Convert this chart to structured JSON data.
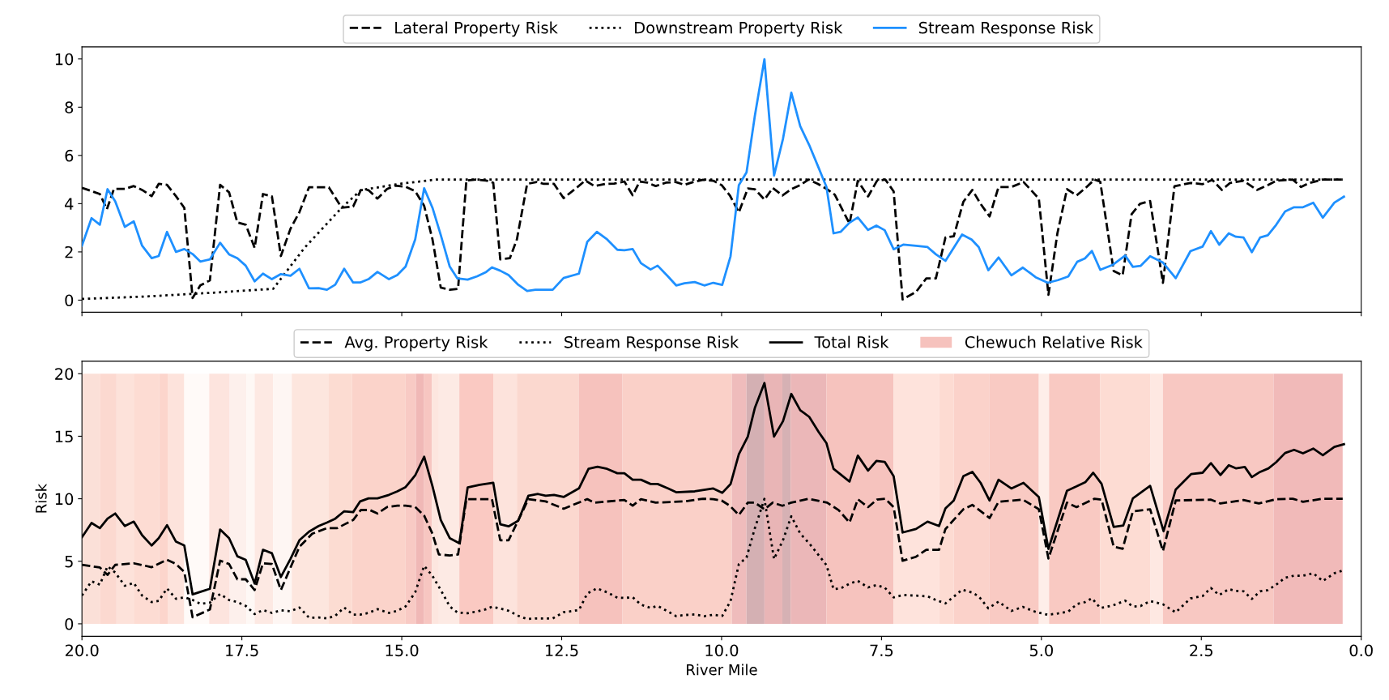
{
  "chart_data": [
    {
      "type": "line",
      "xlim": [
        20,
        0
      ],
      "ylim": [
        -0.5,
        10.5
      ],
      "yticks": [
        0,
        2,
        4,
        6,
        8,
        10
      ],
      "xticks": [
        {
          "value": 20,
          "label": null
        },
        {
          "value": 17.5,
          "label": null
        },
        {
          "value": 15,
          "label": null
        },
        {
          "value": 12.5,
          "label": null
        },
        {
          "value": 10,
          "label": null
        },
        {
          "value": 7.5,
          "label": null
        },
        {
          "value": 5,
          "label": null
        },
        {
          "value": 2.5,
          "label": null
        },
        {
          "value": 0,
          "label": null
        }
      ],
      "tick_labels": "y",
      "legend": "top",
      "series": [
        {
          "name": "Lateral Property Risk",
          "color": "#000000",
          "line_style": "dashed",
          "x": [
            20.0,
            19.72,
            19.61,
            19.5,
            19.33,
            19.19,
            19.06,
            18.91,
            18.8,
            18.67,
            18.53,
            18.4,
            18.27,
            18.15,
            18.0,
            17.84,
            17.7,
            17.57,
            17.44,
            17.3,
            17.17,
            17.03,
            16.89,
            16.74,
            16.6,
            16.45,
            16.3,
            16.14,
            15.94,
            15.76,
            15.64,
            15.52,
            15.38,
            15.23,
            15.1,
            14.94,
            14.79,
            14.65,
            14.52,
            14.39,
            14.25,
            14.12,
            13.99,
            13.84,
            13.68,
            13.57,
            13.46,
            13.31,
            13.2,
            13.04,
            12.89,
            12.78,
            12.62,
            12.47,
            12.29,
            12.13,
            11.99,
            11.81,
            11.68,
            11.52,
            11.39,
            11.28,
            11.16,
            11.03,
            10.87,
            10.72,
            10.58,
            10.44,
            10.29,
            10.13,
            10.0,
            9.87,
            9.73,
            9.59,
            9.48,
            9.33,
            9.2,
            9.05,
            8.91,
            8.77,
            8.64,
            8.5,
            8.35,
            8.23,
            8.14,
            8.0,
            7.87,
            7.71,
            7.57,
            7.44,
            7.31,
            7.17,
            6.96,
            6.8,
            6.65,
            6.5,
            6.37,
            6.22,
            6.08,
            5.95,
            5.81,
            5.67,
            5.47,
            5.28,
            5.04,
            4.89,
            4.75,
            4.6,
            4.45,
            4.31,
            4.17,
            4.08,
            3.87,
            3.73,
            3.59,
            3.46,
            3.3,
            3.1,
            2.92,
            2.67,
            2.48,
            2.33,
            2.18,
            2.05,
            1.84,
            1.63,
            1.46,
            1.33,
            1.07,
            0.94,
            0.81,
            0.6,
            0.29
          ],
          "values": [
            4.66,
            4.4,
            3.77,
            4.61,
            4.61,
            4.73,
            4.57,
            4.31,
            4.82,
            4.78,
            4.31,
            3.83,
            0.09,
            0.61,
            0.82,
            4.78,
            4.47,
            3.22,
            3.13,
            2.17,
            4.4,
            4.3,
            1.83,
            2.96,
            3.65,
            4.68,
            4.68,
            4.68,
            3.83,
            3.88,
            4.56,
            4.56,
            4.21,
            4.61,
            4.75,
            4.7,
            4.52,
            3.91,
            2.52,
            0.52,
            0.43,
            0.47,
            4.96,
            5.0,
            4.96,
            4.87,
            1.69,
            1.74,
            2.52,
            4.82,
            4.9,
            4.82,
            4.82,
            4.23,
            4.61,
            4.96,
            4.73,
            4.82,
            4.83,
            4.92,
            4.35,
            4.92,
            4.87,
            4.73,
            4.87,
            4.9,
            4.78,
            4.9,
            4.99,
            4.95,
            4.77,
            4.34,
            3.64,
            4.63,
            4.6,
            4.17,
            4.65,
            4.34,
            4.6,
            4.77,
            5.0,
            4.83,
            4.6,
            4.37,
            3.9,
            3.17,
            4.95,
            4.3,
            4.95,
            5.0,
            4.51,
            0.03,
            0.34,
            0.9,
            0.9,
            2.6,
            2.65,
            4.08,
            4.57,
            3.99,
            3.47,
            4.69,
            4.69,
            4.9,
            4.21,
            0.22,
            2.77,
            4.6,
            4.34,
            4.65,
            5.0,
            4.91,
            1.21,
            1.03,
            3.56,
            3.99,
            4.11,
            0.72,
            4.72,
            4.86,
            4.81,
            4.99,
            4.57,
            4.86,
            4.95,
            4.57,
            4.77,
            4.95,
            5.0,
            4.69,
            4.86,
            5.0,
            5.0
          ]
        },
        {
          "name": "Downstream Property Risk",
          "color": "#000000",
          "line_style": "dotted",
          "x": [
            20.0,
            19.0,
            18.0,
            17.01,
            16.52,
            15.94,
            15.64,
            15.04,
            14.46,
            0.29
          ],
          "values": [
            0.05,
            0.15,
            0.3,
            0.47,
            2.17,
            3.83,
            4.56,
            4.82,
            5.0,
            5.0
          ]
        },
        {
          "name": "Stream Response Risk",
          "color": "#1e90ff",
          "line_style": "solid",
          "x": [
            20.0,
            19.85,
            19.72,
            19.6,
            19.48,
            19.33,
            19.19,
            19.06,
            18.91,
            18.8,
            18.67,
            18.53,
            18.4,
            18.27,
            18.15,
            18.0,
            17.84,
            17.7,
            17.57,
            17.44,
            17.3,
            17.17,
            17.03,
            16.89,
            16.74,
            16.6,
            16.45,
            16.3,
            16.17,
            16.04,
            15.9,
            15.76,
            15.65,
            15.52,
            15.38,
            15.2,
            15.07,
            14.94,
            14.79,
            14.65,
            14.52,
            14.39,
            14.25,
            14.13,
            13.97,
            13.82,
            13.68,
            13.59,
            13.46,
            13.33,
            13.18,
            13.04,
            12.91,
            12.78,
            12.64,
            12.47,
            12.23,
            12.1,
            11.95,
            11.79,
            11.63,
            11.52,
            11.39,
            11.26,
            11.11,
            11.0,
            10.84,
            10.71,
            10.58,
            10.42,
            10.27,
            10.13,
            9.99,
            9.86,
            9.73,
            9.61,
            9.48,
            9.33,
            9.18,
            9.04,
            8.91,
            8.77,
            8.63,
            8.48,
            8.36,
            8.25,
            8.14,
            8.0,
            7.87,
            7.71,
            7.58,
            7.45,
            7.31,
            7.16,
            6.96,
            6.78,
            6.65,
            6.5,
            6.37,
            6.24,
            6.09,
            5.98,
            5.83,
            5.67,
            5.47,
            5.29,
            5.09,
            4.9,
            4.74,
            4.58,
            4.44,
            4.32,
            4.21,
            4.08,
            3.88,
            3.69,
            3.57,
            3.45,
            3.3,
            3.1,
            2.9,
            2.67,
            2.48,
            2.35,
            2.22,
            2.07,
            1.96,
            1.84,
            1.71,
            1.58,
            1.46,
            1.33,
            1.19,
            1.05,
            0.91,
            0.75,
            0.6,
            0.42,
            0.27
          ],
          "values": [
            2.26,
            3.4,
            3.13,
            4.6,
            4.1,
            3.04,
            3.27,
            2.26,
            1.74,
            1.83,
            2.83,
            2.0,
            2.12,
            1.91,
            1.6,
            1.69,
            2.38,
            1.9,
            1.74,
            1.43,
            0.78,
            1.1,
            0.87,
            1.08,
            1.01,
            1.3,
            0.49,
            0.5,
            0.43,
            0.64,
            1.3,
            0.73,
            0.73,
            0.87,
            1.17,
            0.87,
            1.04,
            1.39,
            2.52,
            4.64,
            3.83,
            2.7,
            1.39,
            0.9,
            0.85,
            0.99,
            1.17,
            1.36,
            1.22,
            1.04,
            0.64,
            0.38,
            0.43,
            0.43,
            0.43,
            0.92,
            1.1,
            2.42,
            2.83,
            2.52,
            2.09,
            2.07,
            2.12,
            1.53,
            1.27,
            1.43,
            0.99,
            0.61,
            0.7,
            0.75,
            0.61,
            0.72,
            0.63,
            1.82,
            4.77,
            5.3,
            7.64,
            9.99,
            5.17,
            6.69,
            8.6,
            7.21,
            6.43,
            5.47,
            4.69,
            2.77,
            2.83,
            3.21,
            3.43,
            2.91,
            3.09,
            2.9,
            2.11,
            2.3,
            2.25,
            2.2,
            1.9,
            1.63,
            2.17,
            2.72,
            2.51,
            2.2,
            1.24,
            1.77,
            1.03,
            1.35,
            0.95,
            0.72,
            0.83,
            0.98,
            1.59,
            1.73,
            2.04,
            1.26,
            1.47,
            1.85,
            1.38,
            1.42,
            1.82,
            1.56,
            0.91,
            2.03,
            2.22,
            2.86,
            2.3,
            2.77,
            2.63,
            2.6,
            1.99,
            2.6,
            2.69,
            3.12,
            3.68,
            3.85,
            3.85,
            4.04,
            3.42,
            4.04,
            4.29
          ]
        }
      ]
    },
    {
      "type": "line",
      "xlim": [
        20,
        0
      ],
      "ylim": [
        -1,
        21
      ],
      "yticks": [
        0,
        5,
        10,
        15,
        20
      ],
      "xticks": [
        {
          "value": 20,
          "label": "20.0"
        },
        {
          "value": 17.5,
          "label": "17.5"
        },
        {
          "value": 15,
          "label": "15.0"
        },
        {
          "value": 12.5,
          "label": "12.5"
        },
        {
          "value": 10,
          "label": "10.0"
        },
        {
          "value": 7.5,
          "label": "7.5"
        },
        {
          "value": 5,
          "label": "5.0"
        },
        {
          "value": 2.5,
          "label": "2.5"
        },
        {
          "value": 0,
          "label": "0.0"
        }
      ],
      "xlabel": "River Mile",
      "ylabel": "Risk",
      "legend": "top",
      "series": [
        {
          "name": "Avg. Property Risk",
          "color": "#000000",
          "line_style": "dashed",
          "x": [
            20.0,
            19.72,
            19.6,
            19.48,
            19.19,
            18.91,
            18.67,
            18.53,
            18.4,
            18.27,
            18.0,
            17.84,
            17.7,
            17.57,
            17.44,
            17.3,
            17.17,
            17.03,
            16.89,
            16.6,
            16.4,
            16.17,
            16.01,
            15.88,
            15.76,
            15.64,
            15.5,
            15.38,
            15.23,
            15.07,
            14.94,
            14.79,
            14.65,
            14.52,
            14.42,
            14.25,
            14.12,
            13.99,
            13.59,
            13.46,
            13.33,
            13.02,
            12.75,
            12.47,
            12.1,
            11.99,
            11.52,
            11.39,
            11.26,
            11.03,
            10.58,
            10.29,
            10.13,
            10.0,
            9.87,
            9.73,
            9.59,
            9.48,
            9.33,
            9.2,
            9.05,
            8.91,
            8.64,
            8.35,
            8.17,
            8.0,
            7.87,
            7.71,
            7.57,
            7.44,
            7.31,
            7.17,
            6.96,
            6.8,
            6.6,
            6.5,
            6.22,
            6.08,
            5.81,
            5.67,
            5.29,
            5.04,
            4.89,
            4.6,
            4.45,
            4.17,
            4.06,
            3.87,
            3.73,
            3.57,
            3.3,
            3.1,
            2.9,
            2.35,
            2.2,
            1.84,
            1.6,
            1.33,
            1.07,
            0.91,
            0.6,
            0.29
          ],
          "values": [
            4.71,
            4.5,
            3.91,
            4.71,
            4.84,
            4.53,
            5.12,
            4.78,
            4.15,
            0.52,
            1.14,
            5.05,
            4.78,
            3.56,
            3.56,
            2.7,
            4.84,
            4.78,
            2.7,
            6.16,
            7.2,
            7.65,
            7.65,
            7.99,
            8.3,
            9.1,
            9.1,
            8.82,
            9.34,
            9.45,
            9.45,
            9.34,
            8.65,
            7.2,
            5.54,
            5.47,
            5.54,
            9.97,
            9.97,
            6.68,
            6.68,
            9.97,
            9.79,
            9.2,
            9.97,
            9.69,
            9.9,
            9.45,
            9.97,
            9.69,
            9.79,
            10.0,
            9.97,
            9.86,
            9.44,
            8.7,
            9.69,
            9.69,
            9.16,
            9.69,
            9.44,
            9.69,
            10.0,
            9.69,
            9.09,
            8.1,
            9.96,
            9.33,
            9.93,
            10.0,
            9.33,
            5.04,
            5.36,
            5.92,
            5.92,
            7.58,
            9.16,
            9.51,
            8.46,
            9.76,
            9.93,
            9.16,
            5.22,
            9.69,
            9.33,
            10.0,
            9.93,
            6.17,
            6.0,
            8.99,
            9.16,
            5.82,
            9.86,
            9.93,
            9.62,
            9.9,
            9.62,
            9.96,
            10.0,
            9.76,
            10.0,
            10.0
          ]
        },
        {
          "name": "Stream Response Risk",
          "color": "#000000",
          "line_style": "dotted",
          "x": [
            20.0,
            19.85,
            19.72,
            19.6,
            19.48,
            19.33,
            19.19,
            19.06,
            18.91,
            18.8,
            18.67,
            18.53,
            18.4,
            18.27,
            18.15,
            18.0,
            17.84,
            17.7,
            17.57,
            17.44,
            17.3,
            17.17,
            17.03,
            16.89,
            16.74,
            16.6,
            16.45,
            16.3,
            16.17,
            16.04,
            15.9,
            15.76,
            15.65,
            15.52,
            15.38,
            15.2,
            15.07,
            14.94,
            14.79,
            14.65,
            14.52,
            14.39,
            14.25,
            14.13,
            13.97,
            13.82,
            13.68,
            13.59,
            13.46,
            13.33,
            13.18,
            13.04,
            12.91,
            12.78,
            12.64,
            12.47,
            12.23,
            12.1,
            11.95,
            11.79,
            11.63,
            11.52,
            11.39,
            11.26,
            11.11,
            11.0,
            10.84,
            10.71,
            10.58,
            10.42,
            10.27,
            10.13,
            9.99,
            9.86,
            9.73,
            9.61,
            9.48,
            9.33,
            9.18,
            9.04,
            8.91,
            8.77,
            8.63,
            8.48,
            8.36,
            8.25,
            8.14,
            8.0,
            7.87,
            7.71,
            7.58,
            7.45,
            7.31,
            7.16,
            6.96,
            6.78,
            6.65,
            6.5,
            6.37,
            6.24,
            6.09,
            5.98,
            5.83,
            5.67,
            5.47,
            5.29,
            5.09,
            4.9,
            4.74,
            4.58,
            4.44,
            4.32,
            4.21,
            4.08,
            3.88,
            3.69,
            3.57,
            3.45,
            3.3,
            3.1,
            2.9,
            2.67,
            2.48,
            2.35,
            2.22,
            2.07,
            1.96,
            1.84,
            1.71,
            1.58,
            1.46,
            1.33,
            1.19,
            1.05,
            0.91,
            0.75,
            0.6,
            0.42,
            0.27
          ],
          "values": [
            2.26,
            3.4,
            3.13,
            4.6,
            4.1,
            3.04,
            3.27,
            2.26,
            1.74,
            1.83,
            2.83,
            2.0,
            2.12,
            1.91,
            1.6,
            1.69,
            2.38,
            1.9,
            1.74,
            1.43,
            0.78,
            1.1,
            0.87,
            1.08,
            1.01,
            1.3,
            0.49,
            0.5,
            0.43,
            0.64,
            1.3,
            0.73,
            0.73,
            0.87,
            1.17,
            0.87,
            1.04,
            1.39,
            2.52,
            4.64,
            3.83,
            2.7,
            1.39,
            0.9,
            0.85,
            0.99,
            1.17,
            1.36,
            1.22,
            1.04,
            0.64,
            0.38,
            0.43,
            0.43,
            0.43,
            0.92,
            1.1,
            2.42,
            2.83,
            2.52,
            2.09,
            2.07,
            2.12,
            1.53,
            1.27,
            1.43,
            0.99,
            0.61,
            0.7,
            0.75,
            0.61,
            0.72,
            0.63,
            1.82,
            4.77,
            5.3,
            7.64,
            9.99,
            5.17,
            6.69,
            8.6,
            7.21,
            6.43,
            5.47,
            4.69,
            2.77,
            2.83,
            3.21,
            3.43,
            2.91,
            3.09,
            2.9,
            2.11,
            2.3,
            2.25,
            2.2,
            1.9,
            1.63,
            2.17,
            2.72,
            2.51,
            2.2,
            1.24,
            1.77,
            1.03,
            1.35,
            0.95,
            0.72,
            0.83,
            0.98,
            1.59,
            1.73,
            2.04,
            1.26,
            1.47,
            1.85,
            1.38,
            1.42,
            1.82,
            1.56,
            0.91,
            2.03,
            2.22,
            2.86,
            2.3,
            2.77,
            2.63,
            2.6,
            1.99,
            2.6,
            2.69,
            3.12,
            3.68,
            3.85,
            3.85,
            4.04,
            3.42,
            4.04,
            4.29
          ]
        },
        {
          "name": "Total Risk",
          "color": "#000000",
          "line_style": "solid",
          "x": [
            20.0,
            19.85,
            19.72,
            19.6,
            19.48,
            19.33,
            19.19,
            19.06,
            18.91,
            18.8,
            18.67,
            18.53,
            18.4,
            18.27,
            18.0,
            17.84,
            17.7,
            17.57,
            17.44,
            17.3,
            17.17,
            17.03,
            16.89,
            16.74,
            16.6,
            16.45,
            16.3,
            16.17,
            16.04,
            15.9,
            15.76,
            15.65,
            15.52,
            15.38,
            15.2,
            15.07,
            14.94,
            14.79,
            14.65,
            14.52,
            14.39,
            14.25,
            14.1,
            13.97,
            13.78,
            13.57,
            13.46,
            13.33,
            13.18,
            13.02,
            12.87,
            12.75,
            12.62,
            12.47,
            12.23,
            12.08,
            11.94,
            11.79,
            11.63,
            11.52,
            11.39,
            11.26,
            11.11,
            11.0,
            10.84,
            10.71,
            10.42,
            10.13,
            9.99,
            9.86,
            9.73,
            9.59,
            9.48,
            9.33,
            9.18,
            9.04,
            8.91,
            8.77,
            8.63,
            8.48,
            8.36,
            8.25,
            8.0,
            7.87,
            7.71,
            7.58,
            7.45,
            7.31,
            7.17,
            6.96,
            6.78,
            6.6,
            6.5,
            6.37,
            6.22,
            6.08,
            5.95,
            5.81,
            5.67,
            5.47,
            5.28,
            5.04,
            4.89,
            4.6,
            4.45,
            4.31,
            4.19,
            4.06,
            3.87,
            3.72,
            3.57,
            3.3,
            3.09,
            2.9,
            2.66,
            2.48,
            2.35,
            2.2,
            2.07,
            1.96,
            1.82,
            1.71,
            1.58,
            1.45,
            1.33,
            1.19,
            1.05,
            0.91,
            0.75,
            0.6,
            0.42,
            0.27
          ],
          "values": [
            6.92,
            8.06,
            7.65,
            8.41,
            8.82,
            7.82,
            8.17,
            7.09,
            6.26,
            6.85,
            7.89,
            6.57,
            6.26,
            2.35,
            2.8,
            7.54,
            6.85,
            5.4,
            5.12,
            3.22,
            5.92,
            5.64,
            3.74,
            5.19,
            6.68,
            7.37,
            7.82,
            8.1,
            8.41,
            9.0,
            8.93,
            9.79,
            10.03,
            10.03,
            10.31,
            10.59,
            10.93,
            11.87,
            13.36,
            11.0,
            8.3,
            6.85,
            6.44,
            10.9,
            11.11,
            11.28,
            7.96,
            7.79,
            8.24,
            10.24,
            10.38,
            10.24,
            10.31,
            10.14,
            10.83,
            12.39,
            12.56,
            12.39,
            12.04,
            12.04,
            11.52,
            11.52,
            11.18,
            11.18,
            10.83,
            10.52,
            10.59,
            10.82,
            10.47,
            11.17,
            13.56,
            14.97,
            17.26,
            19.26,
            14.97,
            16.2,
            18.38,
            17.08,
            16.55,
            15.32,
            14.44,
            12.4,
            11.38,
            13.45,
            12.25,
            13.02,
            12.95,
            11.8,
            7.3,
            7.58,
            8.17,
            7.82,
            9.23,
            9.86,
            11.8,
            12.15,
            11.27,
            9.86,
            11.52,
            10.82,
            11.27,
            10.14,
            5.99,
            10.64,
            10.99,
            11.34,
            12.08,
            11.2,
            7.75,
            7.86,
            10.03,
            11.03,
            7.4,
            10.74,
            11.97,
            12.08,
            12.85,
            11.9,
            12.68,
            12.43,
            12.54,
            11.73,
            12.15,
            12.43,
            12.92,
            13.66,
            13.91,
            13.63,
            14.01,
            13.48,
            14.15,
            14.36
          ]
        }
      ],
      "bands": [
        {
          "axis": "x",
          "from": 20.0,
          "to": 19.72,
          "color": "#fbe0d8"
        },
        {
          "axis": "x",
          "from": 19.72,
          "to": 19.46,
          "color": "#fcd9d0"
        },
        {
          "axis": "x",
          "from": 19.46,
          "to": 19.19,
          "color": "#fde2da"
        },
        {
          "axis": "x",
          "from": 19.19,
          "to": 18.79,
          "color": "#fddcd3"
        },
        {
          "axis": "x",
          "from": 18.79,
          "to": 18.66,
          "color": "#fcd5cc"
        },
        {
          "axis": "x",
          "from": 18.66,
          "to": 18.4,
          "color": "#fde3dc"
        },
        {
          "axis": "x",
          "from": 18.4,
          "to": 18.01,
          "color": "#fffaf8"
        },
        {
          "axis": "x",
          "from": 18.01,
          "to": 17.69,
          "color": "#fde4de"
        },
        {
          "axis": "x",
          "from": 17.69,
          "to": 17.43,
          "color": "#fdf0ec"
        },
        {
          "axis": "x",
          "from": 17.43,
          "to": 17.3,
          "color": "#fef8f5"
        },
        {
          "axis": "x",
          "from": 17.3,
          "to": 17.01,
          "color": "#fde9e3"
        },
        {
          "axis": "x",
          "from": 17.01,
          "to": 16.72,
          "color": "#fef6f3"
        },
        {
          "axis": "x",
          "from": 16.72,
          "to": 16.14,
          "color": "#fde6de"
        },
        {
          "axis": "x",
          "from": 16.14,
          "to": 15.78,
          "color": "#fcdcd2"
        },
        {
          "axis": "x",
          "from": 15.78,
          "to": 14.94,
          "color": "#fbd3ca"
        },
        {
          "axis": "x",
          "from": 14.94,
          "to": 14.78,
          "color": "#f8cac4"
        },
        {
          "axis": "x",
          "from": 14.78,
          "to": 14.65,
          "color": "#f0b8b6"
        },
        {
          "axis": "x",
          "from": 14.65,
          "to": 14.53,
          "color": "#f7c6c1"
        },
        {
          "axis": "x",
          "from": 14.53,
          "to": 14.42,
          "color": "#fde6df"
        },
        {
          "axis": "x",
          "from": 14.42,
          "to": 14.1,
          "color": "#fdeae4"
        },
        {
          "axis": "x",
          "from": 14.1,
          "to": 13.57,
          "color": "#fac9c2"
        },
        {
          "axis": "x",
          "from": 13.57,
          "to": 13.2,
          "color": "#fde3dc"
        },
        {
          "axis": "x",
          "from": 13.2,
          "to": 12.23,
          "color": "#fbd8cf"
        },
        {
          "axis": "x",
          "from": 12.23,
          "to": 11.55,
          "color": "#f6c2bd",
          "label": "Chewuch Relative Risk"
        },
        {
          "axis": "x",
          "from": 11.55,
          "to": 9.84,
          "color": "#fad0c8"
        },
        {
          "axis": "x",
          "from": 9.84,
          "to": 9.61,
          "color": "#efbcbc"
        },
        {
          "axis": "x",
          "from": 9.61,
          "to": 9.33,
          "color": "#d4b0b3"
        },
        {
          "axis": "x",
          "from": 9.33,
          "to": 9.05,
          "color": "#e9b5b6"
        },
        {
          "axis": "x",
          "from": 9.05,
          "to": 8.92,
          "color": "#d6b1b4"
        },
        {
          "axis": "x",
          "from": 8.92,
          "to": 8.36,
          "color": "#ebb7b8"
        },
        {
          "axis": "x",
          "from": 8.36,
          "to": 7.31,
          "color": "#f6c3be"
        },
        {
          "axis": "x",
          "from": 7.31,
          "to": 6.6,
          "color": "#fee3dc"
        },
        {
          "axis": "x",
          "from": 6.6,
          "to": 6.37,
          "color": "#fddbd2"
        },
        {
          "axis": "x",
          "from": 6.37,
          "to": 5.81,
          "color": "#fbd2ca"
        },
        {
          "axis": "x",
          "from": 5.81,
          "to": 5.04,
          "color": "#f9cac3"
        },
        {
          "axis": "x",
          "from": 5.04,
          "to": 4.88,
          "color": "#feeee9"
        },
        {
          "axis": "x",
          "from": 4.88,
          "to": 4.08,
          "color": "#f9c9c2"
        },
        {
          "axis": "x",
          "from": 4.08,
          "to": 3.3,
          "color": "#fddcd3"
        },
        {
          "axis": "x",
          "from": 3.3,
          "to": 3.1,
          "color": "#fee8e2"
        },
        {
          "axis": "x",
          "from": 3.1,
          "to": 1.37,
          "color": "#f8c8c2"
        },
        {
          "axis": "x",
          "from": 1.37,
          "to": 0.29,
          "color": "#f1bab9"
        }
      ]
    }
  ]
}
